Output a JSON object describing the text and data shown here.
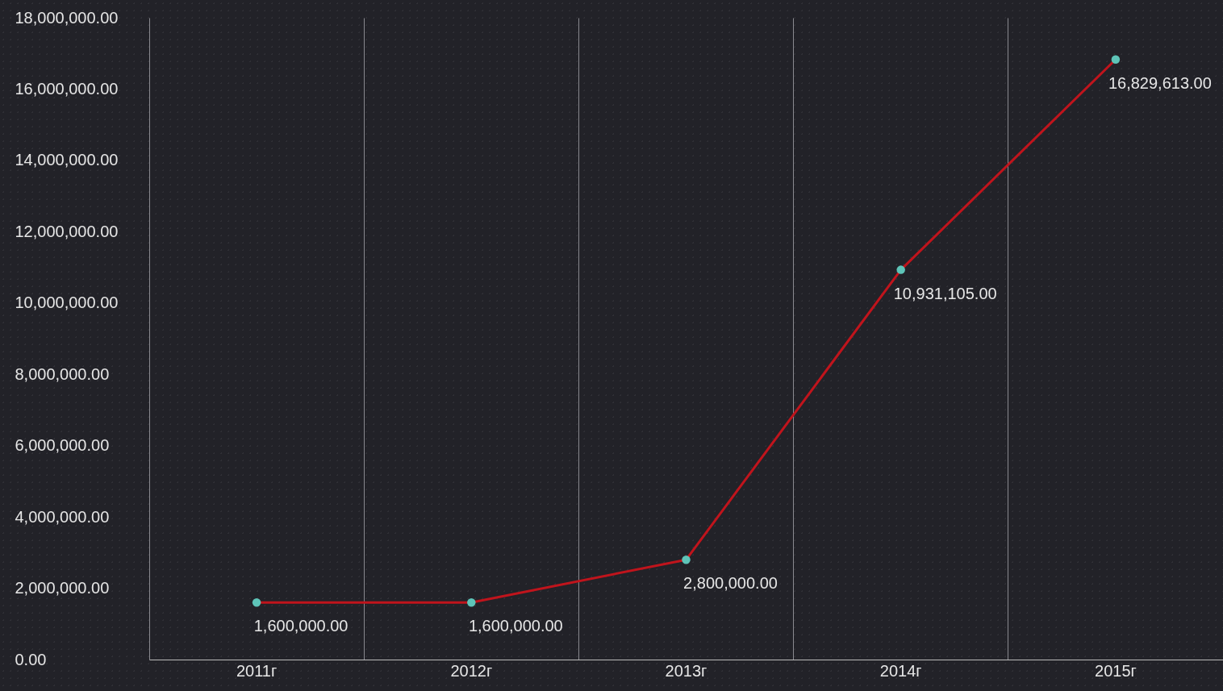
{
  "chart_data": {
    "type": "line",
    "categories": [
      "2011г",
      "2012г",
      "2013г",
      "2014г",
      "2015г"
    ],
    "series": [
      {
        "color": "#c0141c",
        "values": [
          1600000,
          1600000,
          2800000,
          10931105,
          16829613
        ],
        "value_labels": [
          "1,600,000.00",
          "1,600,000.00",
          "2,800,000.00",
          "10,931,105.00",
          "16,829,613.00"
        ]
      }
    ],
    "ylim": [
      0,
      18000000
    ],
    "yticks": [
      {
        "value": 0,
        "label": "0.00"
      },
      {
        "value": 2000000,
        "label": "2,000,000.00"
      },
      {
        "value": 4000000,
        "label": "4,000,000.00"
      },
      {
        "value": 6000000,
        "label": "6,000,000.00"
      },
      {
        "value": 8000000,
        "label": "8,000,000.00"
      },
      {
        "value": 10000000,
        "label": "10,000,000.00"
      },
      {
        "value": 12000000,
        "label": "12,000,000.00"
      },
      {
        "value": 14000000,
        "label": "14,000,000.00"
      },
      {
        "value": 16000000,
        "label": "16,000,000.00"
      },
      {
        "value": 18000000,
        "label": "18,000,000.00"
      }
    ],
    "grid": "x",
    "marker": "circle"
  }
}
